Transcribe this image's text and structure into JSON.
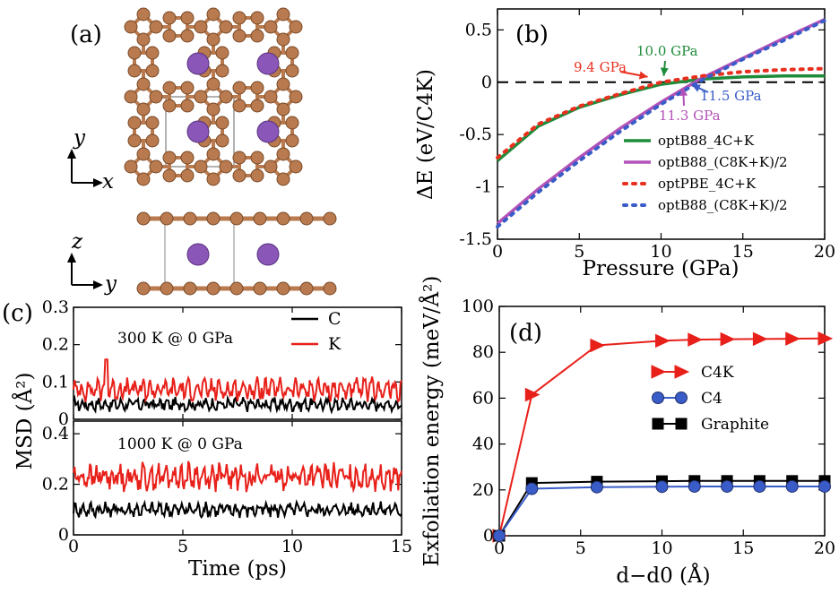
{
  "panel_labels": {
    "a": "(a)",
    "b": "(b)",
    "c": "(c)",
    "d": "(d)"
  },
  "structure": {
    "top_axes": {
      "vertical": "y",
      "horizontal": "x"
    },
    "side_axes": {
      "vertical": "z",
      "horizontal": "y"
    },
    "colors": {
      "carbon": "#b87a4e",
      "potassium": "#8a56b8"
    }
  },
  "chart_data": [
    {
      "panel": "b",
      "type": "line",
      "title": "",
      "xlabel": "Pressure (GPa)",
      "ylabel": "ΔE (eV/C4K)",
      "xlim": [
        0,
        20
      ],
      "ylim": [
        -1.5,
        0.7
      ],
      "xticks": [
        "0",
        "5",
        "10",
        "15",
        "20"
      ],
      "yticks": [
        "-1.5",
        "-1",
        "-0.5",
        "0",
        "0.5"
      ],
      "series": [
        {
          "name": "optB88_4C+K",
          "color": "#1e8c3a",
          "style": "solid",
          "x": [
            0,
            2.5,
            5,
            7.5,
            10,
            12.5,
            15,
            17.5,
            20
          ],
          "y": [
            -0.75,
            -0.42,
            -0.24,
            -0.12,
            -0.02,
            0.03,
            0.05,
            0.06,
            0.06
          ]
        },
        {
          "name": "optB88_(C8K+K)/2",
          "color": "#b352b8",
          "style": "solid",
          "x": [
            0,
            2.5,
            5,
            7.5,
            10,
            12.5,
            15,
            17.5,
            20
          ],
          "y": [
            -1.35,
            -1.02,
            -0.72,
            -0.44,
            -0.19,
            0.04,
            0.23,
            0.42,
            0.6
          ]
        },
        {
          "name": "optPBE_4C+K",
          "color": "#e83020",
          "style": "dotted",
          "x": [
            0,
            2.5,
            5,
            7.5,
            10,
            12.5,
            15,
            17.5,
            20
          ],
          "y": [
            -0.72,
            -0.4,
            -0.23,
            -0.11,
            0.0,
            0.06,
            0.1,
            0.12,
            0.13
          ]
        },
        {
          "name": "optB88_(C8K+K)/2",
          "color": "#3a5cc8",
          "style": "dotted",
          "x": [
            0,
            2.5,
            5,
            7.5,
            10,
            12.5,
            15,
            17.5,
            20
          ],
          "y": [
            -1.38,
            -1.05,
            -0.75,
            -0.47,
            -0.21,
            0.02,
            0.22,
            0.4,
            0.59
          ]
        }
      ],
      "reference_line": {
        "y": 0,
        "style": "dashed"
      },
      "annotations": [
        {
          "text": "9.4 GPa",
          "color": "#e83020",
          "x": 9.4,
          "y": 0
        },
        {
          "text": "10.0 GPa",
          "color": "#1e8c3a",
          "x": 10.0,
          "y": 0
        },
        {
          "text": "11.3 GPa",
          "color": "#b352b8",
          "x": 11.3,
          "y": 0
        },
        {
          "text": "11.5 GPa",
          "color": "#3a5cc8",
          "x": 11.5,
          "y": 0
        }
      ]
    },
    {
      "panel": "c",
      "type": "line",
      "xlabel": "Time (ps)",
      "ylabel": "MSD (Å²)",
      "xlim": [
        0,
        15
      ],
      "xticks": [
        "0",
        "5",
        "10",
        "15"
      ],
      "legend": [
        {
          "name": "C",
          "color": "#000000"
        },
        {
          "name": "K",
          "color": "#e8201a"
        }
      ],
      "subplots": [
        {
          "label": "300 K @ 0 GPa",
          "ylim": [
            0,
            0.3
          ],
          "yticks": [
            "0",
            "0.1",
            "0.2",
            "0.3"
          ],
          "series": [
            {
              "name": "C",
              "color": "#000000",
              "mean": 0.04,
              "amplitude": 0.015,
              "x_range": [
                0,
                15
              ]
            },
            {
              "name": "K",
              "color": "#e8201a",
              "mean": 0.08,
              "amplitude": 0.025,
              "x_range": [
                0,
                15
              ]
            }
          ]
        },
        {
          "label": "1000 K @ 0 GPa",
          "ylim": [
            0,
            0.45
          ],
          "yticks": [
            "0",
            "0.2",
            "0.4"
          ],
          "series": [
            {
              "name": "C",
              "color": "#000000",
              "mean": 0.1,
              "amplitude": 0.025,
              "x_range": [
                0,
                15
              ]
            },
            {
              "name": "K",
              "color": "#e8201a",
              "mean": 0.23,
              "amplitude": 0.045,
              "x_range": [
                0,
                15
              ]
            }
          ]
        }
      ]
    },
    {
      "panel": "d",
      "type": "line",
      "xlabel": "d−d0 (Å)",
      "ylabel": "Exfoliation energy (meV/Å²)",
      "xlim": [
        0,
        20
      ],
      "ylim": [
        0,
        100
      ],
      "xticks": [
        "0",
        "5",
        "10",
        "15",
        "20"
      ],
      "yticks": [
        "0",
        "20",
        "40",
        "60",
        "80",
        "100"
      ],
      "series": [
        {
          "name": "C4K",
          "color": "#e8201a",
          "marker": "triangle-right",
          "x": [
            0,
            2,
            6,
            10,
            12,
            14,
            16,
            18,
            20
          ],
          "y": [
            0,
            61.5,
            83,
            85,
            85.5,
            85.7,
            85.8,
            85.9,
            86
          ]
        },
        {
          "name": "C4",
          "color": "#3a5cc8",
          "marker": "circle",
          "x": [
            0,
            2,
            6,
            10,
            12,
            14,
            16,
            18,
            20
          ],
          "y": [
            0,
            20.5,
            21.2,
            21.4,
            21.5,
            21.5,
            21.5,
            21.5,
            21.5
          ]
        },
        {
          "name": "Graphite",
          "color": "#000000",
          "marker": "square",
          "x": [
            0,
            2,
            6,
            10,
            12,
            14,
            16,
            18,
            20
          ],
          "y": [
            0,
            23,
            23.6,
            23.8,
            23.9,
            23.9,
            23.9,
            23.9,
            23.9
          ]
        }
      ]
    }
  ]
}
